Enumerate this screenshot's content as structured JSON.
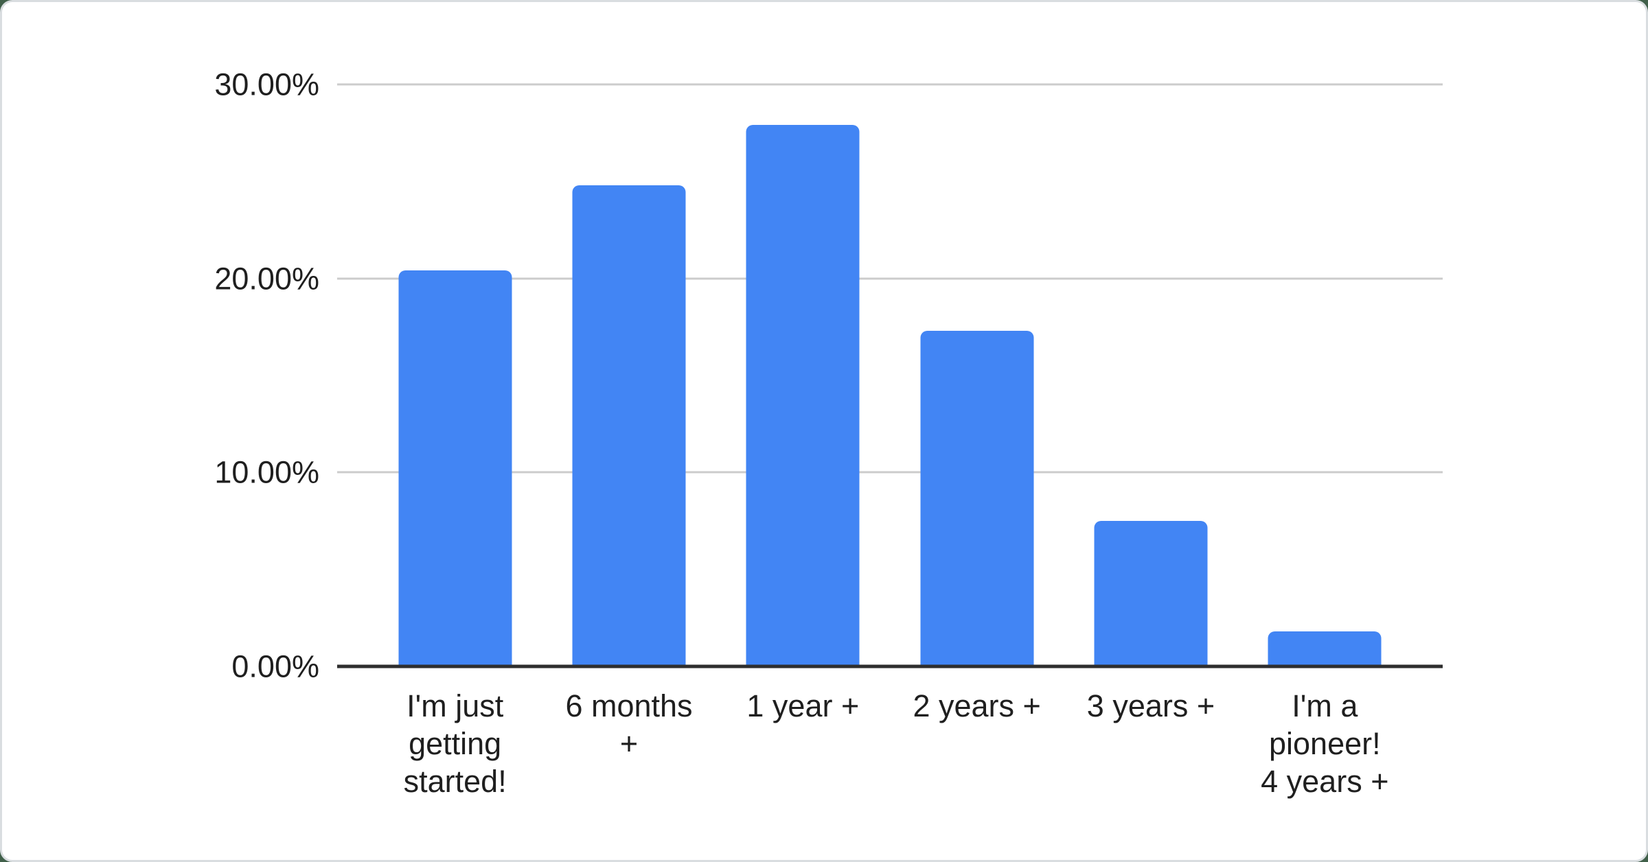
{
  "page": {
    "background_color": "#41604a",
    "card_background": "#ffffff",
    "card_border_color": "#d9dde0"
  },
  "chart_data": {
    "type": "bar",
    "title": "",
    "categories": [
      "I'm just getting started!",
      "6 months +",
      "1 year +",
      "2 years +",
      "3 years +",
      "I'm a pioneer! 4 years +"
    ],
    "category_lines": [
      [
        "I'm just",
        "getting",
        "started!"
      ],
      [
        "6 months",
        "+"
      ],
      [
        "1 year +"
      ],
      [
        "2 years +"
      ],
      [
        "3 years +"
      ],
      [
        "I'm a",
        "pioneer!",
        "4 years +"
      ]
    ],
    "values": [
      20.4,
      24.8,
      27.9,
      17.3,
      7.5,
      1.8
    ],
    "unit": "%",
    "xlabel": "",
    "ylabel": "",
    "ylim": [
      0,
      30
    ],
    "yticks": [
      {
        "value": 0,
        "label": "0.00%"
      },
      {
        "value": 10,
        "label": "10.00%"
      },
      {
        "value": 20,
        "label": "20.00%"
      },
      {
        "value": 30,
        "label": "30.00%"
      }
    ],
    "grid": true,
    "legend_position": "none",
    "bar_color": "#4285f4",
    "gridline_color": "#cccccc",
    "axis_line_color": "#2e2e2e",
    "label_color": "#1f1f1f"
  }
}
